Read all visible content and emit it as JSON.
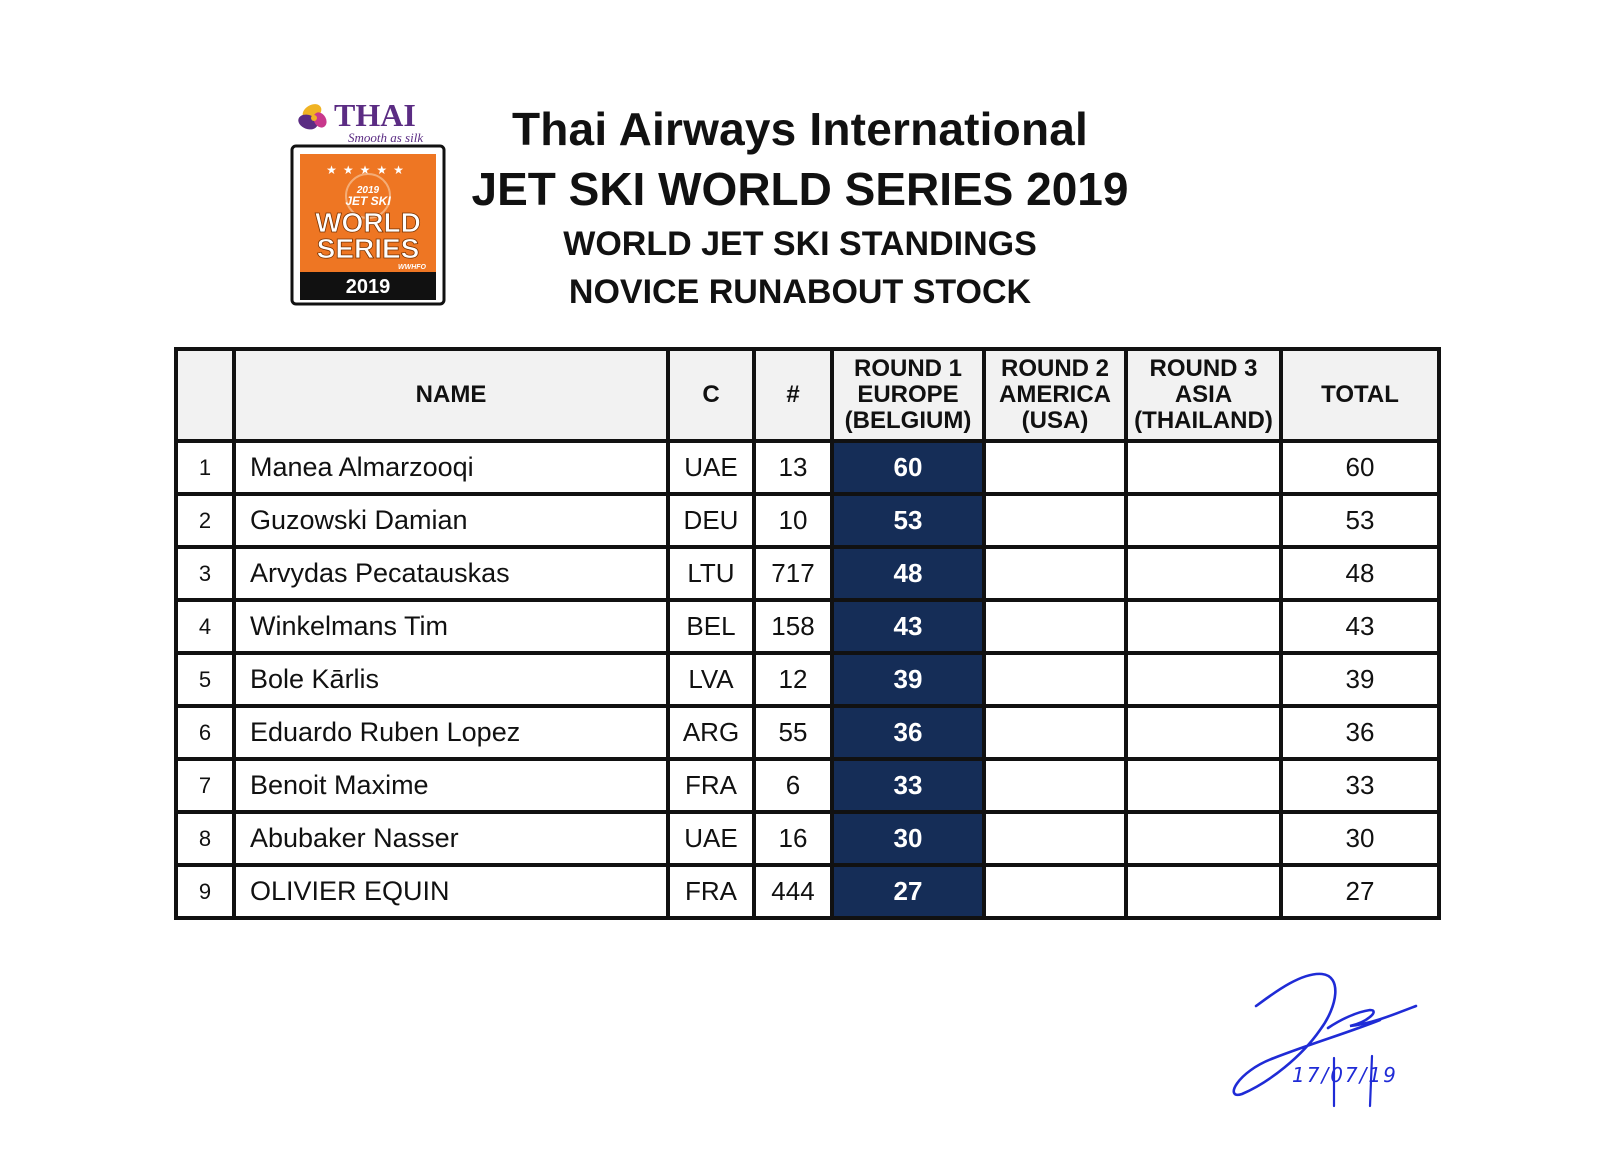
{
  "logo": {
    "airline": "THAI",
    "tagline": "Smooth as silk",
    "badge_year_top": "2019",
    "badge_line1": "JET SKI",
    "badge_line2": "WORLD",
    "badge_line3": "SERIES",
    "badge_small": "WWHFO",
    "badge_year": "2019",
    "colors": {
      "orange": "#ee7623",
      "purple": "#5b2c83",
      "gold": "#f0b323"
    }
  },
  "header": {
    "line1": "Thai Airways International",
    "line2": "JET SKI WORLD SERIES 2019",
    "line3": "WORLD JET SKI STANDINGS",
    "line4": "NOVICE RUNABOUT STOCK"
  },
  "table": {
    "columns": {
      "pos": "",
      "name": "NAME",
      "country": "C",
      "number": "#",
      "round1": [
        "ROUND 1",
        "EUROPE",
        "(BELGIUM)"
      ],
      "round2": [
        "ROUND 2",
        "AMERICA",
        "(USA)"
      ],
      "round3": [
        "ROUND 3",
        "ASIA",
        "(THAILAND)"
      ],
      "total": "TOTAL"
    },
    "rows": [
      {
        "pos": "1",
        "name": "Manea Almarzooqi",
        "country": "UAE",
        "number": "13",
        "round1": "60",
        "round2": "",
        "round3": "",
        "total": "60"
      },
      {
        "pos": "2",
        "name": "Guzowski Damian",
        "country": "DEU",
        "number": "10",
        "round1": "53",
        "round2": "",
        "round3": "",
        "total": "53"
      },
      {
        "pos": "3",
        "name": "Arvydas Pecatauskas",
        "country": "LTU",
        "number": "717",
        "round1": "48",
        "round2": "",
        "round3": "",
        "total": "48"
      },
      {
        "pos": "4",
        "name": "Winkelmans Tim",
        "country": "BEL",
        "number": "158",
        "round1": "43",
        "round2": "",
        "round3": "",
        "total": "43"
      },
      {
        "pos": "5",
        "name": "Bole Kārlis",
        "country": "LVA",
        "number": "12",
        "round1": "39",
        "round2": "",
        "round3": "",
        "total": "39"
      },
      {
        "pos": "6",
        "name": "Eduardo Ruben Lopez",
        "country": "ARG",
        "number": "55",
        "round1": "36",
        "round2": "",
        "round3": "",
        "total": "36"
      },
      {
        "pos": "7",
        "name": "Benoit Maxime",
        "country": "FRA",
        "number": "6",
        "round1": "33",
        "round2": "",
        "round3": "",
        "total": "33"
      },
      {
        "pos": "8",
        "name": "Abubaker Nasser",
        "country": "UAE",
        "number": "16",
        "round1": "30",
        "round2": "",
        "round3": "",
        "total": "30"
      },
      {
        "pos": "9",
        "name": "OLIVIER EQUIN",
        "country": "FRA",
        "number": "444",
        "round1": "27",
        "round2": "",
        "round3": "",
        "total": "27"
      }
    ],
    "colors": {
      "round1_bg": "#152d57",
      "header_bg": "#f2f2f2"
    }
  },
  "signature": {
    "date": "17/07/19",
    "ink_color": "#1f2bd6"
  }
}
